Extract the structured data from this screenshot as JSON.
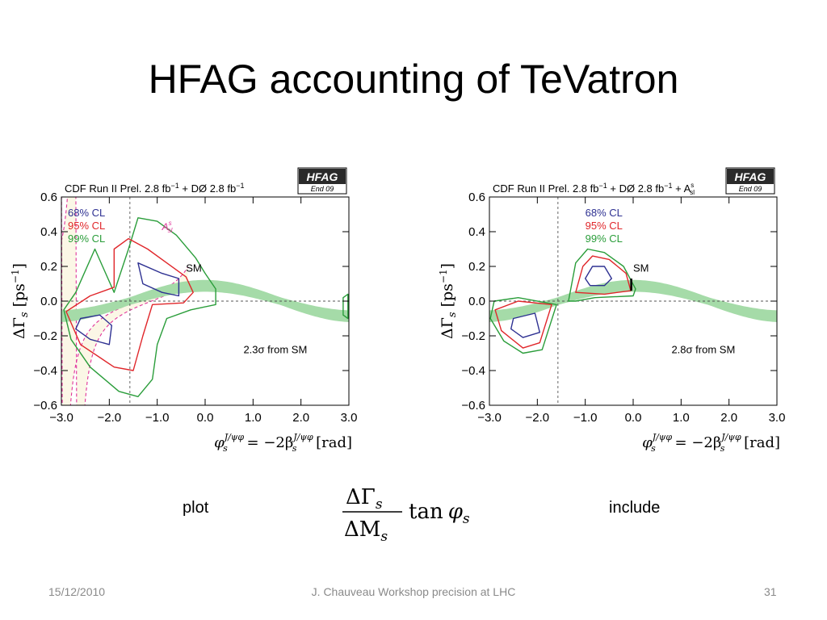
{
  "slide": {
    "title": "HFAG accounting of TeVatron",
    "label_left": "plot",
    "label_right": "include",
    "formula": {
      "num": "ΔΓ",
      "num_sub": "s",
      "den": "ΔM",
      "den_sub": "s",
      "func": "tan",
      "phi": "φ",
      "phi_sub": "s"
    }
  },
  "footer": {
    "date": "15/12/2010",
    "center": "J. Chauveau Workshop precision at LHC",
    "page": "31"
  },
  "chart_data": [
    {
      "type": "contour",
      "header": "CDF  Run II Prel. 2.8 fb",
      "header_sup1": "−1",
      "header_mid": " + DØ  2.8 fb",
      "header_sup2": "−1",
      "header_extra": "",
      "header_extra_sup": "",
      "header_extra_sub": "",
      "badge": {
        "title": "HFAG",
        "sub": "End 09"
      },
      "ylabel": {
        "main": "ΔΓ",
        "sub": "s",
        "unit": "[ps",
        "unit_sup": "−1",
        "unit_close": "]"
      },
      "xlabel": {
        "main": "φ",
        "main_sup": "J/ψφ",
        "main_sub": "s",
        "eq": " = −2β",
        "eq_sup": "J/ψφ",
        "eq_sub": "s",
        "unit": " [rad]"
      },
      "xlim": [
        -3.0,
        3.0
      ],
      "ylim": [
        -0.6,
        0.6
      ],
      "xticks": [
        -3.0,
        -2.0,
        -1.0,
        0.0,
        1.0,
        2.0,
        3.0
      ],
      "xtick_labels": [
        "−3.0",
        "−2.0",
        "−1.0",
        "0.0",
        "1.0",
        "2.0",
        "3.0"
      ],
      "yticks": [
        -0.6,
        -0.4,
        -0.2,
        0.0,
        0.2,
        0.4,
        0.6
      ],
      "ytick_labels": [
        "−0.6",
        "−0.4",
        "−0.2",
        "0.0",
        "0.2",
        "0.4",
        "0.6"
      ],
      "legend": [
        {
          "label": "68% CL",
          "color": "#2e3192"
        },
        {
          "label": "95% CL",
          "color": "#e0262a"
        },
        {
          "label": "99% CL",
          "color": "#2a9d3a"
        }
      ],
      "legend_position": "top-left",
      "sm_label": "SM",
      "asl_label": {
        "main": "A",
        "sup": "s",
        "sub": "sl"
      },
      "annotation": "2.3σ  from SM",
      "phi_sm_line": -1.57,
      "show_asl_band": true,
      "sm_marker": false,
      "band_color": "#a5dba8",
      "contours": [
        {
          "cl": "99",
          "color": "#2a9d3a",
          "points": [
            [
              -2.3,
              0.3
            ],
            [
              -1.9,
              0.05
            ],
            [
              -1.6,
              0.3
            ],
            [
              -1.4,
              0.48
            ],
            [
              -1.0,
              0.46
            ],
            [
              -0.6,
              0.38
            ],
            [
              -0.2,
              0.25
            ],
            [
              0.0,
              0.16
            ],
            [
              0.22,
              0.07
            ],
            [
              0.22,
              -0.02
            ],
            [
              -0.3,
              -0.05
            ],
            [
              -0.8,
              -0.1
            ],
            [
              -1.0,
              -0.25
            ],
            [
              -1.1,
              -0.45
            ],
            [
              -1.4,
              -0.55
            ],
            [
              -1.8,
              -0.52
            ],
            [
              -2.4,
              -0.38
            ],
            [
              -2.8,
              -0.22
            ],
            [
              -2.95,
              -0.05
            ],
            [
              -2.7,
              0.05
            ]
          ]
        },
        {
          "cl": "99b",
          "color": "#2a9d3a",
          "points": [
            [
              2.88,
              0.02
            ],
            [
              2.98,
              0.04
            ],
            [
              2.98,
              -0.1
            ],
            [
              2.88,
              -0.08
            ]
          ]
        },
        {
          "cl": "95",
          "color": "#e0262a",
          "points": [
            [
              -1.9,
              0.08
            ],
            [
              -1.9,
              0.3
            ],
            [
              -1.6,
              0.36
            ],
            [
              -1.2,
              0.3
            ],
            [
              -0.8,
              0.22
            ],
            [
              -0.4,
              0.14
            ],
            [
              -0.25,
              0.05
            ],
            [
              -0.45,
              -0.01
            ],
            [
              -1.1,
              -0.02
            ],
            [
              -1.3,
              -0.2
            ],
            [
              -1.5,
              -0.4
            ],
            [
              -1.9,
              -0.38
            ],
            [
              -2.6,
              -0.25
            ],
            [
              -2.9,
              -0.06
            ],
            [
              -2.4,
              0.03
            ]
          ]
        },
        {
          "cl": "68",
          "color": "#2e3192",
          "points": [
            [
              -1.4,
              0.22
            ],
            [
              -0.9,
              0.16
            ],
            [
              -0.55,
              0.13
            ],
            [
              -0.55,
              0.03
            ],
            [
              -0.9,
              0.05
            ],
            [
              -1.3,
              0.1
            ]
          ]
        },
        {
          "cl": "68b",
          "color": "#2e3192",
          "points": [
            [
              -2.6,
              -0.1
            ],
            [
              -2.2,
              -0.08
            ],
            [
              -1.95,
              -0.14
            ],
            [
              -2.0,
              -0.25
            ],
            [
              -2.4,
              -0.22
            ],
            [
              -2.7,
              -0.16
            ]
          ]
        }
      ]
    },
    {
      "type": "contour",
      "header": "CDF  Run II Prel. 2.8 fb",
      "header_sup1": "−1",
      "header_mid": " + DØ  2.8 fb",
      "header_sup2": "−1",
      "header_extra": " + A",
      "header_extra_sup": "s",
      "header_extra_sub": "sl",
      "badge": {
        "title": "HFAG",
        "sub": "End 09"
      },
      "ylabel": {
        "main": "ΔΓ",
        "sub": "s",
        "unit": "[ps",
        "unit_sup": "−1",
        "unit_close": "]"
      },
      "xlabel": {
        "main": "φ",
        "main_sup": "J/ψφ",
        "main_sub": "s",
        "eq": " = −2β",
        "eq_sup": "J/ψφ",
        "eq_sub": "s",
        "unit": " [rad]"
      },
      "xlim": [
        -3.0,
        3.0
      ],
      "ylim": [
        -0.6,
        0.6
      ],
      "xticks": [
        -3.0,
        -2.0,
        -1.0,
        0.0,
        1.0,
        2.0,
        3.0
      ],
      "xtick_labels": [
        "−3.0",
        "−2.0",
        "−1.0",
        "0.0",
        "1.0",
        "2.0",
        "3.0"
      ],
      "yticks": [
        -0.6,
        -0.4,
        -0.2,
        0.0,
        0.2,
        0.4,
        0.6
      ],
      "ytick_labels": [
        "−0.6",
        "−0.4",
        "−0.2",
        "0.0",
        "0.2",
        "0.4",
        "0.6"
      ],
      "legend": [
        {
          "label": "68% CL",
          "color": "#2e3192"
        },
        {
          "label": "95% CL",
          "color": "#e0262a"
        },
        {
          "label": "99% CL",
          "color": "#2a9d3a"
        }
      ],
      "legend_position": "top-center",
      "sm_label": "SM",
      "asl_label": {
        "main": "",
        "sup": "",
        "sub": ""
      },
      "annotation": "2.8σ  from SM",
      "phi_sm_line": -1.57,
      "show_asl_band": false,
      "sm_marker": true,
      "band_color": "#a5dba8",
      "contours": [
        {
          "cl": "99",
          "color": "#2a9d3a",
          "points": [
            [
              -1.35,
              0.0
            ],
            [
              -1.2,
              0.22
            ],
            [
              -0.95,
              0.3
            ],
            [
              -0.6,
              0.28
            ],
            [
              -0.2,
              0.2
            ],
            [
              0.05,
              0.07
            ],
            [
              0.0,
              0.03
            ],
            [
              -0.8,
              0.02
            ],
            [
              -1.2,
              0.0
            ]
          ]
        },
        {
          "cl": "95",
          "color": "#e0262a",
          "points": [
            [
              -1.2,
              0.05
            ],
            [
              -1.05,
              0.2
            ],
            [
              -0.85,
              0.26
            ],
            [
              -0.5,
              0.24
            ],
            [
              -0.15,
              0.16
            ],
            [
              -0.05,
              0.06
            ],
            [
              -0.6,
              0.04
            ]
          ]
        },
        {
          "cl": "68",
          "color": "#2e3192",
          "points": [
            [
              -1.0,
              0.13
            ],
            [
              -0.85,
              0.2
            ],
            [
              -0.6,
              0.2
            ],
            [
              -0.45,
              0.13
            ],
            [
              -0.6,
              0.09
            ],
            [
              -0.9,
              0.09
            ]
          ]
        },
        {
          "cl": "99b",
          "color": "#2a9d3a",
          "points": [
            [
              -1.6,
              -0.02
            ],
            [
              -1.9,
              -0.28
            ],
            [
              -2.3,
              -0.3
            ],
            [
              -2.7,
              -0.23
            ],
            [
              -2.98,
              -0.1
            ],
            [
              -2.9,
              0.0
            ],
            [
              -2.4,
              0.02
            ]
          ]
        },
        {
          "cl": "95b",
          "color": "#e0262a",
          "points": [
            [
              -1.7,
              -0.02
            ],
            [
              -1.95,
              -0.24
            ],
            [
              -2.3,
              -0.27
            ],
            [
              -2.75,
              -0.17
            ],
            [
              -2.88,
              -0.05
            ],
            [
              -2.4,
              0.0
            ]
          ]
        },
        {
          "cl": "68b",
          "color": "#2e3192",
          "points": [
            [
              -2.5,
              -0.1
            ],
            [
              -2.05,
              -0.07
            ],
            [
              -1.95,
              -0.18
            ],
            [
              -2.3,
              -0.21
            ],
            [
              -2.55,
              -0.16
            ]
          ]
        }
      ]
    }
  ]
}
